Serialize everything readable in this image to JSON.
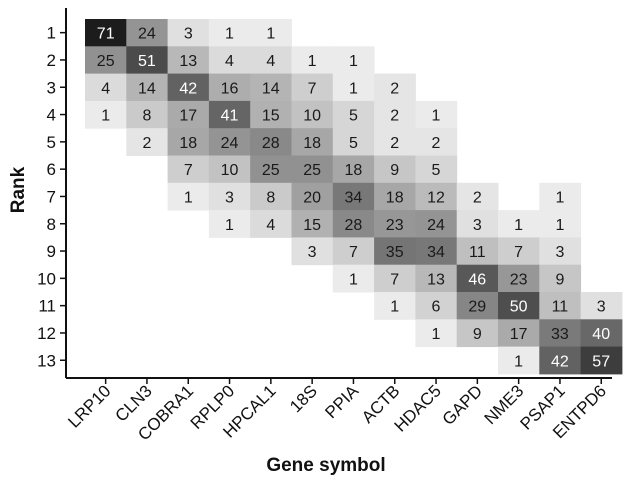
{
  "chart_data": {
    "type": "heatmap",
    "title": "",
    "xlabel": "Gene symbol",
    "ylabel": "Rank",
    "x_categories": [
      "LRP10",
      "CLN3",
      "COBRA1",
      "RPLP0",
      "HPCAL1",
      "18S",
      "PPIA",
      "ACTB",
      "HDAC5",
      "GAPD",
      "NME3",
      "PSAP1",
      "ENTPD6"
    ],
    "y_categories": [
      "1",
      "2",
      "3",
      "4",
      "5",
      "6",
      "7",
      "8",
      "9",
      "10",
      "11",
      "12",
      "13"
    ],
    "values": [
      [
        71,
        24,
        3,
        1,
        1,
        null,
        null,
        null,
        null,
        null,
        null,
        null,
        null
      ],
      [
        25,
        51,
        13,
        4,
        4,
        1,
        1,
        null,
        null,
        null,
        null,
        null,
        null
      ],
      [
        4,
        14,
        42,
        16,
        14,
        7,
        1,
        2,
        null,
        null,
        null,
        null,
        null
      ],
      [
        1,
        8,
        17,
        41,
        15,
        10,
        5,
        2,
        1,
        null,
        null,
        null,
        null
      ],
      [
        null,
        2,
        18,
        24,
        28,
        18,
        5,
        2,
        2,
        null,
        null,
        null,
        null
      ],
      [
        null,
        null,
        7,
        10,
        25,
        25,
        18,
        9,
        5,
        null,
        null,
        null,
        null
      ],
      [
        null,
        null,
        1,
        3,
        8,
        20,
        34,
        18,
        12,
        2,
        null,
        1,
        null
      ],
      [
        null,
        null,
        null,
        1,
        4,
        15,
        28,
        23,
        24,
        3,
        1,
        1,
        null
      ],
      [
        null,
        null,
        null,
        null,
        null,
        3,
        7,
        35,
        34,
        11,
        7,
        3,
        null
      ],
      [
        null,
        null,
        null,
        null,
        null,
        null,
        1,
        7,
        13,
        46,
        23,
        9,
        null
      ],
      [
        null,
        null,
        null,
        null,
        null,
        null,
        null,
        1,
        6,
        29,
        50,
        11,
        3
      ],
      [
        null,
        null,
        null,
        null,
        null,
        null,
        null,
        null,
        1,
        9,
        17,
        33,
        40
      ],
      [
        null,
        null,
        null,
        null,
        null,
        null,
        null,
        null,
        null,
        null,
        1,
        42,
        57
      ]
    ],
    "color_scale": {
      "low": "#f4f4f4",
      "high": "#1c1c1c",
      "max_value": 71
    },
    "grid": false,
    "legend": "none"
  }
}
